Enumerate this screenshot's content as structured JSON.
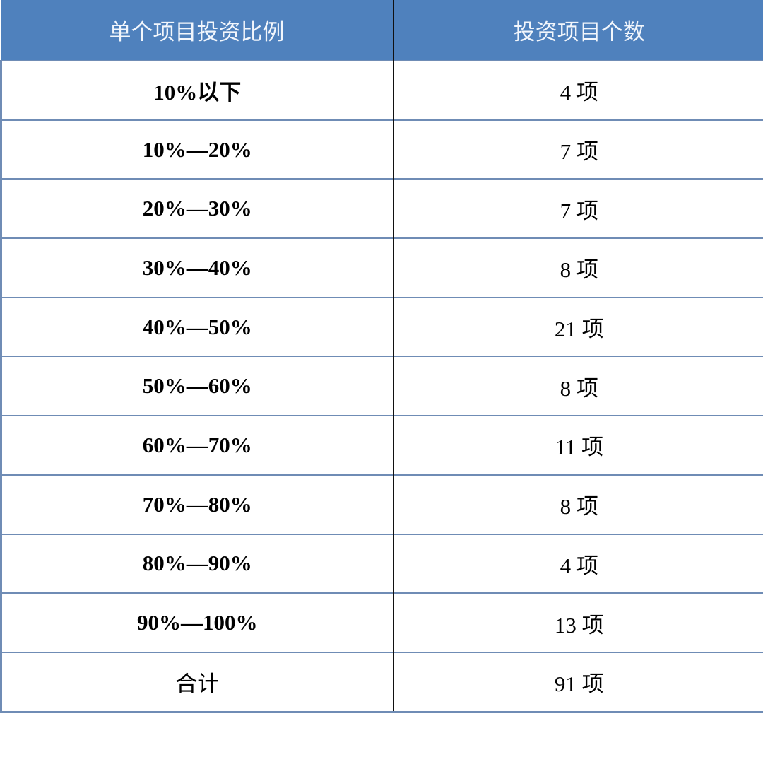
{
  "table": {
    "headers": [
      "单个项目投资比例",
      "投资项目个数"
    ],
    "rows": [
      [
        "10%以下",
        "4 项"
      ],
      [
        "10%—20%",
        "7 项"
      ],
      [
        "20%—30%",
        "7 项"
      ],
      [
        "30%—40%",
        "8 项"
      ],
      [
        "40%—50%",
        "21 项"
      ],
      [
        "50%—60%",
        "8 项"
      ],
      [
        "60%—70%",
        "11 项"
      ],
      [
        "70%—80%",
        "8 项"
      ],
      [
        "80%—90%",
        "4 项"
      ],
      [
        "90%—100%",
        "13 项"
      ],
      [
        "合计",
        "91 项"
      ]
    ]
  },
  "colors": {
    "header_bg": "#4f81bd",
    "grid": "#6f8cb5"
  }
}
